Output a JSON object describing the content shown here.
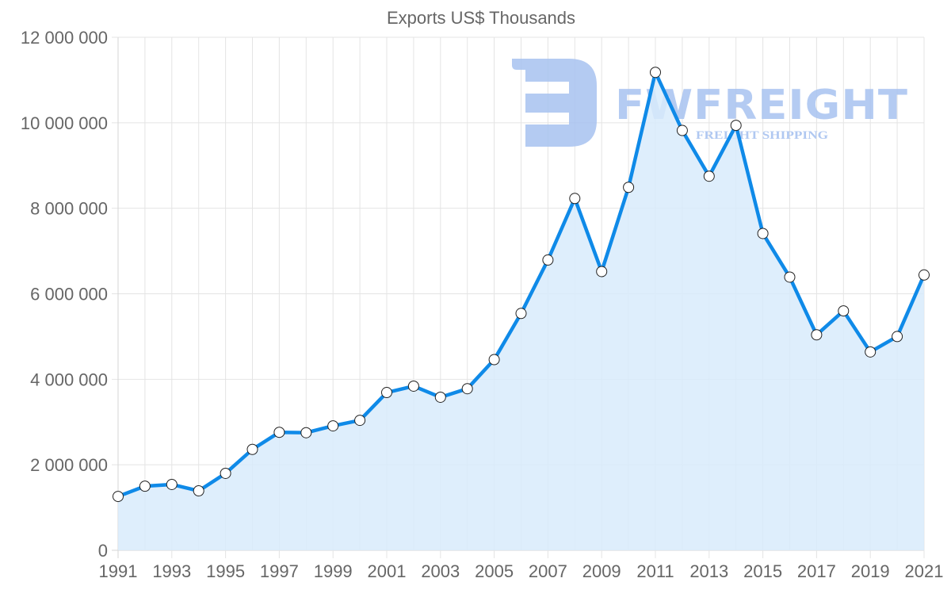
{
  "chart_data": {
    "type": "line",
    "title": "Exports US$ Thousands",
    "xlabel": "",
    "ylabel": "",
    "ylim": [
      0,
      12000000
    ],
    "grid": true,
    "legend": null,
    "fill_area": true,
    "y_ticks": [
      0,
      2000000,
      4000000,
      6000000,
      8000000,
      10000000,
      12000000
    ],
    "y_tick_labels": [
      "0",
      "2 000 000",
      "4 000 000",
      "6 000 000",
      "8 000 000",
      "10 000 000",
      "12 000 000"
    ],
    "x": [
      1991,
      1992,
      1993,
      1994,
      1995,
      1996,
      1997,
      1998,
      1999,
      2000,
      2001,
      2002,
      2003,
      2004,
      2005,
      2006,
      2007,
      2008,
      2009,
      2010,
      2011,
      2012,
      2013,
      2014,
      2015,
      2016,
      2017,
      2018,
      2019,
      2020,
      2021
    ],
    "x_tick_labels": [
      "1991",
      "1993",
      "1995",
      "1997",
      "1999",
      "2001",
      "2003",
      "2005",
      "2007",
      "2009",
      "2011",
      "2013",
      "2015",
      "2017",
      "2019",
      "2021"
    ],
    "series": [
      {
        "name": "Exports US$ Thousands",
        "values": [
          1260000,
          1500000,
          1540000,
          1390000,
          1800000,
          2360000,
          2760000,
          2750000,
          2910000,
          3040000,
          3690000,
          3840000,
          3580000,
          3780000,
          4460000,
          5540000,
          6790000,
          8230000,
          6520000,
          8490000,
          11180000,
          9820000,
          8750000,
          9940000,
          7410000,
          6390000,
          5040000,
          5600000,
          4640000,
          5000000,
          6440000
        ]
      }
    ]
  },
  "colors": {
    "line": "#0f8ae8",
    "fill": "#d8ebfc",
    "point_fill": "#ffffff",
    "point_stroke": "#222222"
  },
  "watermark": {
    "brand": "FWFREIGHT",
    "tagline": "FREIGHT SHIPPING"
  }
}
